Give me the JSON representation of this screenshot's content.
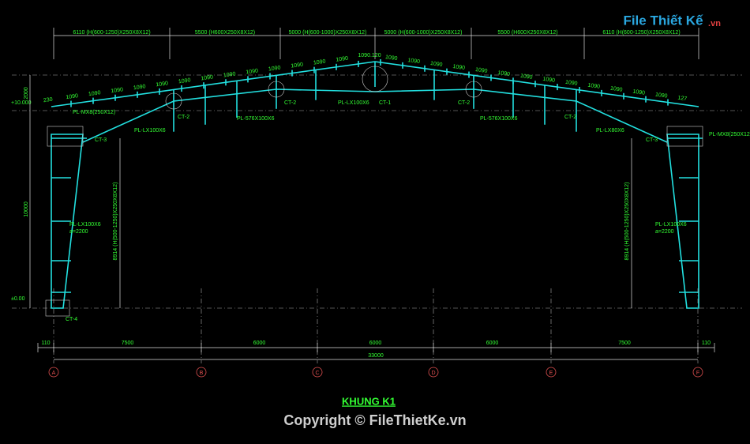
{
  "logo": {
    "name": "File Thiết Kế",
    "suffix": ".vn"
  },
  "top_dimensions": [
    "6110 (H(600-1250)X250X8X12)",
    "5500 (H600X250X8X12)",
    "5000 (H(600-1000)X250X8X12)",
    "5000 (H(600-1000)X250X8X12)",
    "5500 (H600X250X8X12)",
    "6110 (H(600-1250)X250X8X12)"
  ],
  "rafter_spacings": {
    "left": [
      "230",
      "1090",
      "1090",
      "1090",
      "1090",
      "1090",
      "1090",
      "1090",
      "1090",
      "1090",
      "1090",
      "1090",
      "1090",
      "1090"
    ],
    "peak": "1090.120",
    "right": [
      "1090",
      "1090",
      "1090",
      "1090",
      "1090",
      "1090",
      "1090",
      "1090",
      "1090",
      "1090",
      "1090",
      "1090",
      "1090",
      "127"
    ]
  },
  "members": [
    "CT-1",
    "CT-2",
    "CT-2",
    "CT-2",
    "CT-2",
    "CT-3",
    "CT-3",
    "CT-4",
    "PL-LX100X6",
    "PL-LX100X6",
    "PL-576X100X6",
    "PL-576X100X6",
    "PL-LX80X6",
    "PL-MX8(250X12)",
    "PL-MX8(250X12)"
  ],
  "levels": {
    "eave": "+10.000",
    "ground": "±0.00",
    "height": "10000",
    "rise": "2000"
  },
  "columns": [
    {
      "section": "8914 (H(500-1250)X250X8X12)",
      "plate": "PL-LX100X6",
      "spacing": "a=2200"
    },
    {
      "section": "8914 (H(500-1250)X250X8X12)",
      "plate": "PL-LX100X6",
      "spacing": "a=2200"
    }
  ],
  "bottom_dimensions": [
    "110",
    "7500",
    "6000",
    "6000",
    "6000",
    "7500",
    "110"
  ],
  "total_dimension": "33000",
  "axes": [
    "A",
    "B",
    "C",
    "D",
    "E",
    "F"
  ],
  "title": "KHUNG K1",
  "copyright": "Copyright © FileThietKe.vn"
}
